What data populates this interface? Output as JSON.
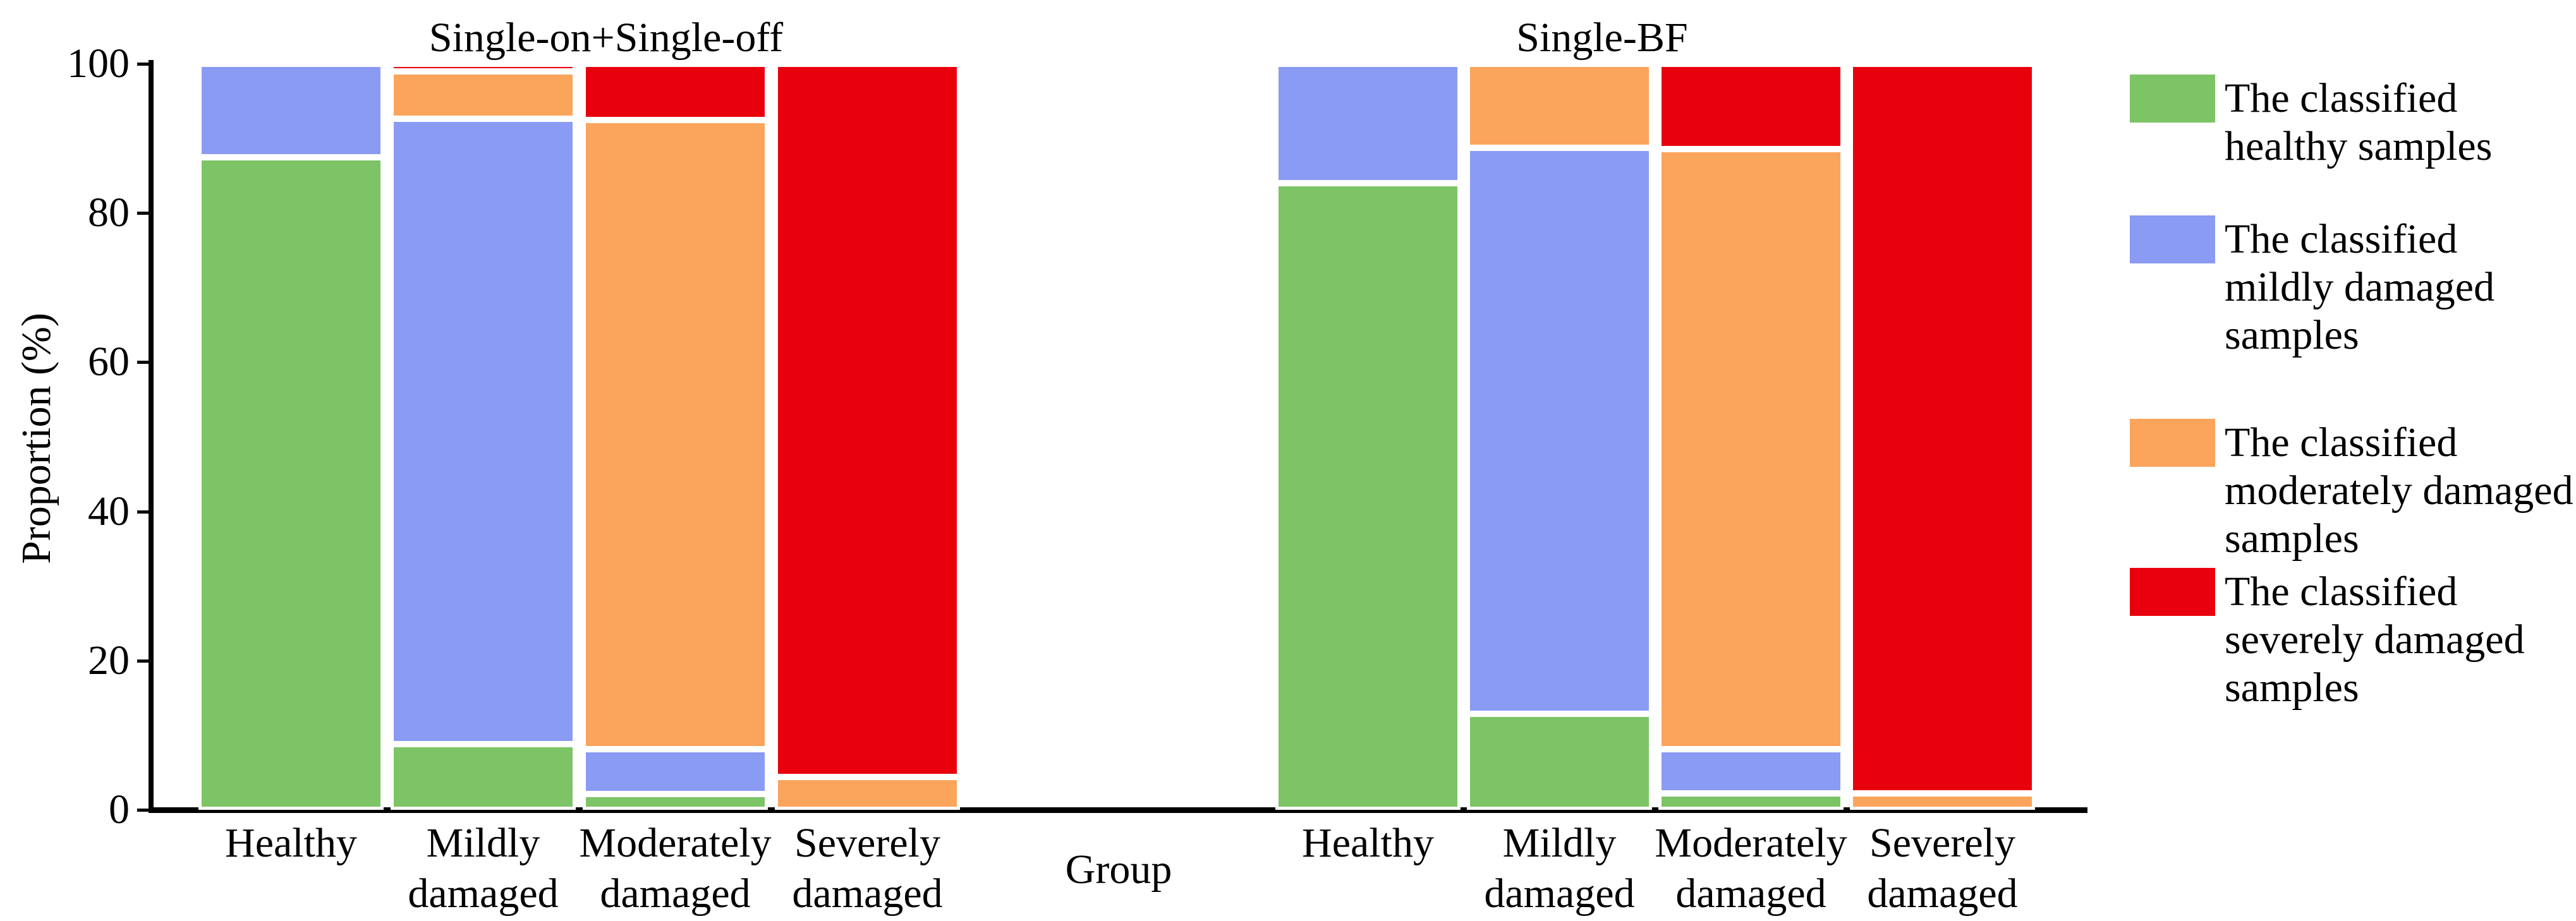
{
  "figure": {
    "ylabel": "Proportion (%)",
    "xlabel": "Group"
  },
  "colors": {
    "healthy": "#7CC465",
    "mild": "#8A9BF3",
    "moderate": "#FBA45C",
    "severe": "#E8000D",
    "axis": "#000000",
    "background": "#FFFFFF"
  },
  "legend": {
    "items": [
      {
        "key": "healthy",
        "color": "#7CC465",
        "lines": [
          "The classified",
          "healthy samples"
        ]
      },
      {
        "key": "mild",
        "color": "#8A9BF3",
        "lines": [
          "The classified",
          "mildly damaged",
          "samples"
        ]
      },
      {
        "key": "moderate",
        "color": "#FBA45C",
        "lines": [
          "The classified",
          "moderately damaged",
          "samples"
        ]
      },
      {
        "key": "severe",
        "color": "#E8000D",
        "lines": [
          "The classified",
          "severely damaged",
          "samples"
        ]
      }
    ]
  },
  "chart_data": {
    "type": "bar",
    "stacked": true,
    "ylabel": "Proportion (%)",
    "xlabel": "Group",
    "ylim": [
      0,
      100
    ],
    "yticks": [
      0,
      20,
      40,
      60,
      80,
      100
    ],
    "grid": false,
    "legend_position": "right",
    "series_names": [
      "The classified healthy samples",
      "The classified mildly damaged samples",
      "The classified moderately damaged samples",
      "The classified severely damaged samples"
    ],
    "groups": [
      {
        "title": "Single-on+Single-off",
        "categories": [
          "Healthy",
          "Mildly damaged",
          "Moderately damaged",
          "Severely damaged"
        ],
        "category_label_lines": [
          [
            "Healthy"
          ],
          [
            "Mildly",
            "damaged"
          ],
          [
            "Moderately",
            "damaged"
          ],
          [
            "Severely",
            "damaged"
          ]
        ],
        "series": [
          {
            "name": "The classified healthy samples",
            "key": "healthy",
            "values": [
              87.5,
              8.8,
              2.1,
              0
            ]
          },
          {
            "name": "The classified mildly damaged samples",
            "key": "mild",
            "values": [
              12.5,
              83.8,
              6.0,
              0
            ]
          },
          {
            "name": "The classified moderately damaged samples",
            "key": "moderate",
            "values": [
              0,
              6.4,
              84.4,
              4.4
            ]
          },
          {
            "name": "The classified severely damaged samples",
            "key": "severe",
            "values": [
              0,
              1.0,
              7.5,
              95.6
            ]
          }
        ]
      },
      {
        "title": "Single-BF",
        "categories": [
          "Healthy",
          "Mildly damaged",
          "Moderately damaged",
          "Severely damaged"
        ],
        "category_label_lines": [
          [
            "Healthy"
          ],
          [
            "Mildly",
            "damaged"
          ],
          [
            "Moderately",
            "damaged"
          ],
          [
            "Severely",
            "damaged"
          ]
        ],
        "series": [
          {
            "name": "The classified healthy samples",
            "key": "healthy",
            "values": [
              84.0,
              12.9,
              2.2,
              0
            ]
          },
          {
            "name": "The classified mildly damaged samples",
            "key": "mild",
            "values": [
              16.0,
              75.8,
              5.9,
              0
            ]
          },
          {
            "name": "The classified moderately damaged samples",
            "key": "moderate",
            "values": [
              0,
              11.3,
              80.5,
              2.2
            ]
          },
          {
            "name": "The classified severely damaged samples",
            "key": "severe",
            "values": [
              0,
              0,
              11.4,
              97.8
            ]
          }
        ]
      }
    ]
  }
}
